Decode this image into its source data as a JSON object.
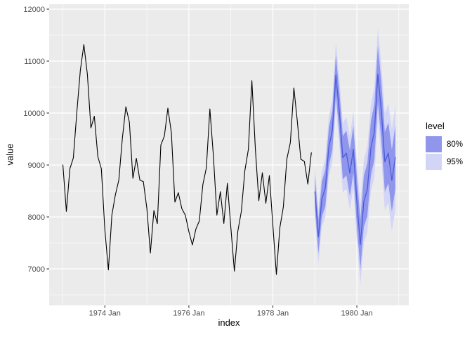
{
  "axis_titles": {
    "x": "index",
    "y": "value"
  },
  "legend": {
    "title": "level",
    "items": [
      {
        "label": "80%",
        "color": "#9096EC"
      },
      {
        "label": "95%",
        "color": "#D3D5F7"
      }
    ]
  },
  "colors": {
    "panel_bg": "#EBEBEB",
    "grid": "#FFFFFF",
    "observed_line": "#000000",
    "forecast_mean_line": "#4A5CD9",
    "band_80": "#9096EC",
    "band_95": "#D3D5F7",
    "tick_text": "#4D4D4D",
    "tick_mark": "#333333"
  },
  "chart_data": {
    "type": "line",
    "title": "",
    "xlabel": "index",
    "ylabel": "value",
    "frequency": "monthly",
    "x_range": [
      "1973 Jan",
      "1980 Dec"
    ],
    "ylim": [
      6300,
      12100
    ],
    "y_ticks": [
      7000,
      8000,
      9000,
      10000,
      11000,
      12000
    ],
    "x_ticks": [
      {
        "label": "1974 Jan",
        "month": 12
      },
      {
        "label": "1976 Jan",
        "month": 36
      },
      {
        "label": "1978 Jan",
        "month": 60
      },
      {
        "label": "1980 Jan",
        "month": 84
      }
    ],
    "grid": {
      "major_x_months": [
        12,
        36,
        60,
        84
      ],
      "minor_x_months": [
        0,
        24,
        48,
        72,
        96
      ],
      "major_y": [
        7000,
        8000,
        9000,
        10000,
        11000,
        12000
      ],
      "minor_y": [
        6500,
        7500,
        8500,
        9500,
        10500,
        11500
      ]
    },
    "legend_position": "right",
    "series": [
      {
        "name": "observed",
        "color": "#000000",
        "start": "1973 Jan",
        "start_month": 0,
        "values": [
          9007,
          8106,
          8928,
          9137,
          10017,
          10826,
          11317,
          10744,
          9713,
          9938,
          9161,
          8927,
          7750,
          6981,
          8038,
          8422,
          8714,
          9512,
          10120,
          9823,
          8743,
          9129,
          8710,
          8680,
          8162,
          7306,
          8124,
          7870,
          9387,
          9556,
          10093,
          9620,
          8285,
          8466,
          8160,
          8034,
          7717,
          7461,
          7767,
          7925,
          8623,
          8945,
          10078,
          9179,
          8037,
          8488,
          7874,
          8647,
          7792,
          6957,
          7726,
          8106,
          8890,
          9299,
          10625,
          9302,
          8314,
          8850,
          8265,
          8796,
          7836,
          6892,
          7791,
          8192,
          9115,
          9434,
          10484,
          9827,
          9110,
          9070,
          8633,
          9240
        ]
      },
      {
        "name": "forecast mean",
        "color": "#4A5CD9",
        "start": "1979 Jan",
        "start_month": 72,
        "values": [
          8490,
          7620,
          8340,
          8560,
          9350,
          9670,
          10730,
          10010,
          9140,
          9230,
          8840,
          9300,
          8290,
          7470,
          8300,
          8530,
          9320,
          9640,
          10750,
          10030,
          9060,
          9230,
          8700,
          9150
        ]
      }
    ],
    "intervals": [
      {
        "level": "95%",
        "color": "#D3D5F7",
        "start_month": 72,
        "lower": [
          7998,
          7106,
          7804,
          8002,
          8770,
          9068,
          10106,
          9364,
          8472,
          8540,
          8128,
          8566,
          7534,
          6692,
          7500,
          7708,
          8476,
          8774,
          9862,
          9120,
          8128,
          8276,
          7724,
          8152
        ],
        "upper": [
          8982,
          8134,
          8876,
          9118,
          9930,
          10272,
          11354,
          10656,
          9808,
          9920,
          9552,
          10034,
          9046,
          8248,
          9100,
          9352,
          10164,
          10506,
          11638,
          10940,
          9992,
          10184,
          9676,
          10148
        ]
      },
      {
        "level": "80%",
        "color": "#9096EC",
        "start_month": 72,
        "lower": [
          8177,
          7294,
          8001,
          8208,
          8985,
          9292,
          10339,
          9606,
          8723,
          8800,
          8397,
          8844,
          7821,
          6988,
          7805,
          8022,
          8799,
          9106,
          10203,
          9470,
          8487,
          8644,
          8101,
          8538
        ],
        "upper": [
          8803,
          7946,
          8679,
          8912,
          9715,
          10048,
          11121,
          10414,
          9557,
          9660,
          9283,
          9756,
          8759,
          7952,
          8795,
          9038,
          9841,
          10174,
          11297,
          10590,
          9633,
          9816,
          9299,
          9762
        ]
      }
    ]
  }
}
